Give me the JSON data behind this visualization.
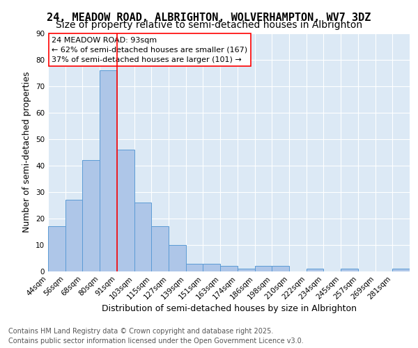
{
  "title_line1": "24, MEADOW ROAD, ALBRIGHTON, WOLVERHAMPTON, WV7 3DZ",
  "title_line2": "Size of property relative to semi-detached houses in Albrighton",
  "xlabel": "Distribution of semi-detached houses by size in Albrighton",
  "ylabel": "Number of semi-detached properties",
  "annotation_title": "24 MEADOW ROAD: 93sqm",
  "annotation_line2": "← 62% of semi-detached houses are smaller (167)",
  "annotation_line3": "37% of semi-detached houses are larger (101) →",
  "property_size_sqm": 93,
  "bar_heights": [
    17,
    27,
    42,
    76,
    46,
    26,
    17,
    10,
    3,
    3,
    2,
    1,
    2,
    2,
    0,
    1,
    0,
    1,
    0,
    0,
    1
  ],
  "bar_color": "#aec6e8",
  "bar_edgecolor": "#5b9bd5",
  "redline_bin": 4,
  "ylim": [
    0,
    90
  ],
  "yticks": [
    0,
    10,
    20,
    30,
    40,
    50,
    60,
    70,
    80,
    90
  ],
  "tick_labels": [
    "44sqm",
    "56sqm",
    "68sqm",
    "80sqm",
    "91sqm",
    "103sqm",
    "115sqm",
    "127sqm",
    "139sqm",
    "151sqm",
    "163sqm",
    "174sqm",
    "186sqm",
    "198sqm",
    "210sqm",
    "222sqm",
    "234sqm",
    "245sqm",
    "257sqm",
    "269sqm",
    "281sqm"
  ],
  "plot_bg_color": "#dce9f5",
  "footer_line1": "Contains HM Land Registry data © Crown copyright and database right 2025.",
  "footer_line2": "Contains public sector information licensed under the Open Government Licence v3.0.",
  "title_fontsize": 11,
  "subtitle_fontsize": 10,
  "axis_label_fontsize": 9,
  "tick_fontsize": 7.5,
  "annotation_fontsize": 8,
  "footer_fontsize": 7
}
